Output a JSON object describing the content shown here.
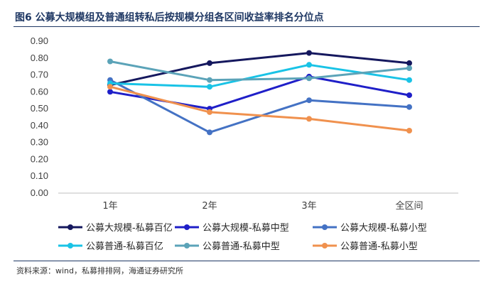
{
  "header": {
    "title": "图6  公募大规模组及普通组转私后按规模分组各区间收益率排名分位点"
  },
  "footer": {
    "source": "资料来源：wind，私募排排网，海通证券研究所"
  },
  "chart_data": {
    "type": "line",
    "categories": [
      "1年",
      "2年",
      "3年",
      "全区间"
    ],
    "ylim": [
      0,
      0.9
    ],
    "yticks": [
      "0.00",
      "0.10",
      "0.20",
      "0.30",
      "0.40",
      "0.50",
      "0.60",
      "0.70",
      "0.80",
      "0.90"
    ],
    "grid": false,
    "legend_position": "bottom",
    "series": [
      {
        "name": "公募大规模-私募百亿",
        "color": "#15185e",
        "values": [
          0.64,
          0.77,
          0.83,
          0.77
        ]
      },
      {
        "name": "公募大规模-私募中型",
        "color": "#1f1fc8",
        "values": [
          0.6,
          0.5,
          0.69,
          0.58
        ]
      },
      {
        "name": "公募大规模-私募小型",
        "color": "#4472c4",
        "values": [
          0.67,
          0.36,
          0.55,
          0.51
        ]
      },
      {
        "name": "公募普通-私募百亿",
        "color": "#19c3e6",
        "values": [
          0.65,
          0.63,
          0.76,
          0.67
        ]
      },
      {
        "name": "公募普通-私募中型",
        "color": "#5ba3b8",
        "values": [
          0.78,
          0.67,
          0.68,
          0.74
        ]
      },
      {
        "name": "公募普通-私募小型",
        "color": "#f0914e",
        "values": [
          0.63,
          0.48,
          0.44,
          0.37
        ]
      }
    ]
  }
}
